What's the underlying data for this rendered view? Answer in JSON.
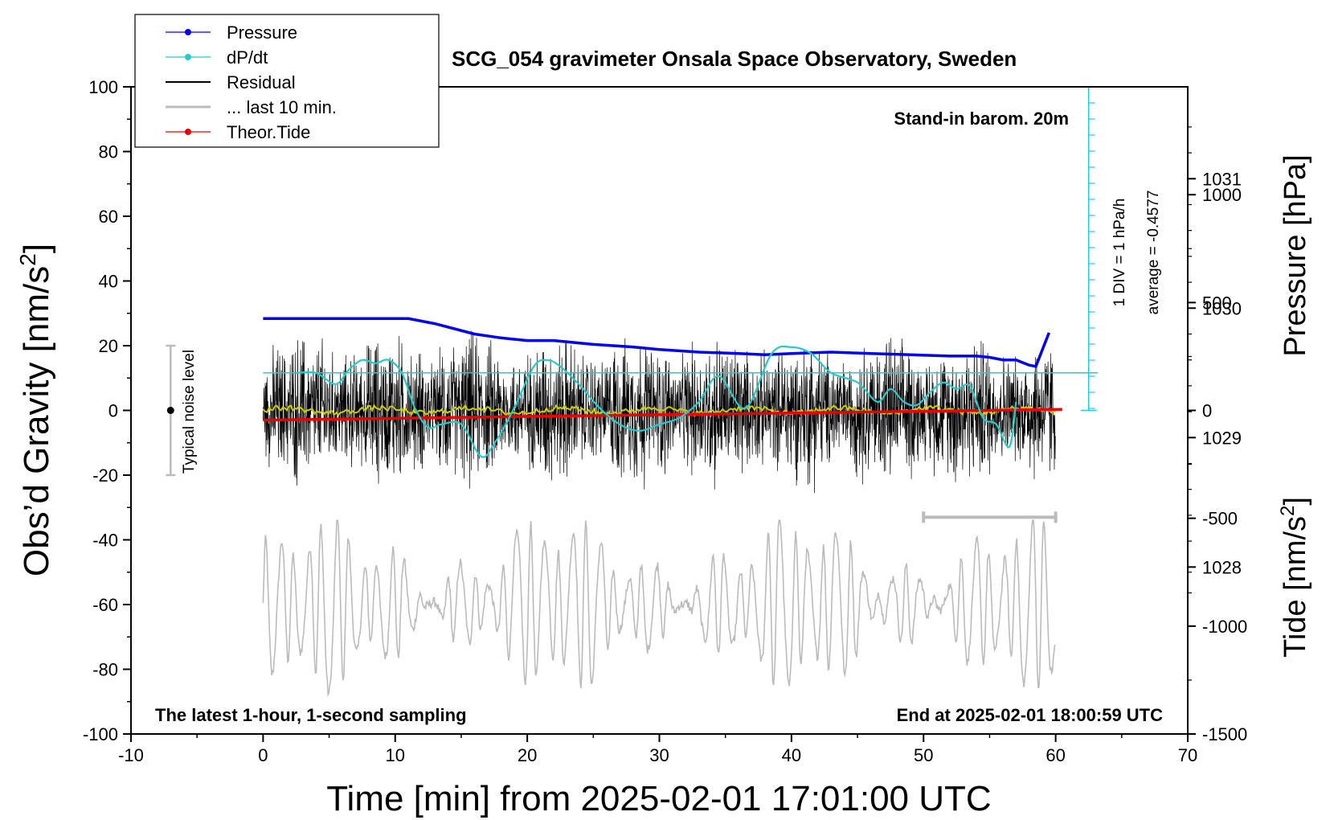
{
  "chart_data": {
    "type": "line",
    "title": "SCG_054 gravimeter Onsala Space Observatory, Sweden",
    "xlabel": "Time [min] from 2025-02-01 17:01:00 UTC",
    "ylabel_main": "Obs’d Gravity [nm/s",
    "ylabel_main_sup": "2",
    "ylabel_main_end": "]",
    "ylabel_pressure": "Pressure [hPa]",
    "ylabel_tide": "Tide [nm/s",
    "ylabel_tide_sup": "2",
    "ylabel_tide_end": "]",
    "xlim": [
      -10,
      70
    ],
    "ylim": [
      -100,
      100
    ],
    "pressure_lim": [
      1026.71,
      1031.71
    ],
    "tide_lim": [
      -1500,
      1500
    ],
    "x_ticks": [
      "-10",
      "0",
      "10",
      "20",
      "30",
      "40",
      "50",
      "60",
      "70"
    ],
    "y_ticks": [
      "-100",
      "-80",
      "-60",
      "-40",
      "-20",
      "0",
      "20",
      "40",
      "60",
      "80",
      "100"
    ],
    "pressure_ticks": [
      "1028",
      "1029",
      "1030",
      "1031"
    ],
    "tide_ticks": [
      "-1500",
      "-1000",
      "-500",
      "0",
      "500",
      "1000"
    ],
    "legend": [
      "Pressure",
      "dP/dt",
      "Residual",
      "... last 10 min.",
      "Theor.Tide"
    ],
    "annotation_barom": "Stand-in barom. 20m",
    "annotation_div": "1 DIV = 1 hPa/h",
    "annotation_average": "average = -0.4577",
    "annotation_noise": "Typical noise level",
    "annotation_sampling": "The latest 1-hour, 1-second sampling",
    "annotation_end": "End at 2025-02-01 18:00:59 UTC",
    "colors": {
      "pressure": "#0000ee",
      "dpdt": "#22cccc",
      "residual": "#000000",
      "last10": "#bbbbbb",
      "tide": "#ee0000",
      "residual_smooth": "#cccc00"
    },
    "series": [
      {
        "name": "Pressure",
        "unit": "hPa",
        "x": [
          0,
          2,
          5,
          8,
          11,
          13,
          16,
          18,
          20,
          22,
          25,
          28,
          30,
          33,
          36,
          38,
          40,
          43,
          46,
          49,
          52,
          54,
          55,
          56,
          57,
          58,
          58.5,
          59,
          59.5
        ],
        "values": [
          1029.92,
          1029.92,
          1029.92,
          1029.92,
          1029.92,
          1029.88,
          1029.8,
          1029.77,
          1029.75,
          1029.75,
          1029.72,
          1029.7,
          1029.68,
          1029.66,
          1029.65,
          1029.64,
          1029.65,
          1029.66,
          1029.65,
          1029.64,
          1029.63,
          1029.63,
          1029.62,
          1029.6,
          1029.6,
          1029.56,
          1029.55,
          1029.68,
          1029.81
        ]
      },
      {
        "name": "dP/dt",
        "unit": "hPa/h (1 DIV = 1 hPa/h)",
        "x": [
          2.5,
          4,
          5.5,
          6.5,
          7.5,
          8.5,
          9.5,
          10.5,
          11.5,
          12.5,
          13.5,
          15,
          16.5,
          17.5,
          19,
          20.5,
          21.5,
          22.5,
          24,
          25.5,
          27,
          28.5,
          30,
          31.5,
          33,
          34.5,
          36.5,
          38.5,
          40,
          41.5,
          43,
          45,
          46.5,
          47.5,
          48.5,
          49.5,
          50.5,
          51.5,
          52.5,
          53.5,
          54.5,
          55.5,
          56.5,
          57
        ],
        "values": [
          0,
          0,
          -0.7,
          0.2,
          0.8,
          0.6,
          0.8,
          0,
          -2.2,
          -3.4,
          -3.2,
          -3.2,
          -5.2,
          -4.4,
          -2.2,
          0.4,
          0.8,
          0.4,
          -0.8,
          -2.2,
          -3.2,
          -3.6,
          -3.2,
          -2.8,
          -1.8,
          -0.2,
          -2.2,
          1.2,
          1.6,
          1.2,
          0,
          -0.6,
          -1.8,
          -1,
          -1.8,
          -2,
          -1.2,
          -0.6,
          -1,
          -0.8,
          -2.8,
          -3.2,
          -4.6,
          -1.8
        ]
      },
      {
        "name": "Residual",
        "unit": "nm/s2",
        "x": [
          0,
          60
        ],
        "values": [
          0,
          0
        ]
      },
      {
        "name": "... last 10 min.",
        "unit": "nm/s2 (offset -60)",
        "x": [
          50,
          60
        ],
        "values": [
          -60,
          -60
        ]
      },
      {
        "name": "Theor.Tide",
        "unit": "nm/s2",
        "x": [
          0,
          10,
          20,
          30,
          40,
          50,
          60.5
        ],
        "values": [
          -45,
          -37,
          -28,
          -20,
          -12,
          -4,
          5
        ]
      }
    ]
  }
}
